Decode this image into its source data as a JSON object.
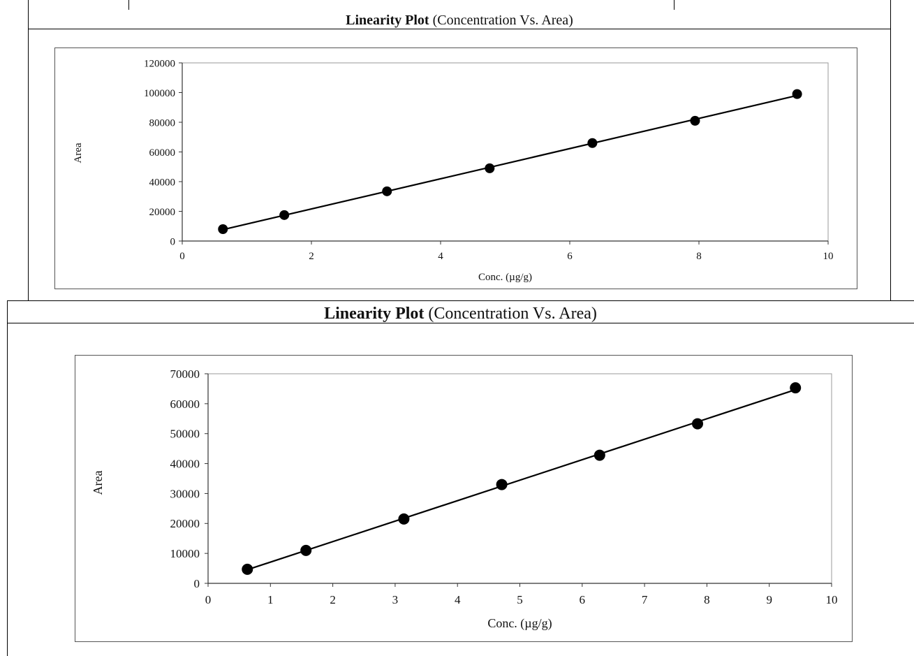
{
  "panels": [
    {
      "title_bold": "Linearity Plot",
      "title_rest": " (Concentration Vs. Area)"
    },
    {
      "title_bold": "Linearity Plot",
      "title_rest": " (Concentration Vs. Area)"
    }
  ],
  "chart_data": [
    {
      "type": "scatter",
      "title": "Linearity Plot (Concentration Vs. Area)",
      "xlabel": "Conc. (µg/g)",
      "ylabel": "Area",
      "xlim": [
        0,
        10
      ],
      "ylim": [
        0,
        120000
      ],
      "x_ticks": [
        0,
        2,
        4,
        6,
        8,
        10
      ],
      "y_ticks": [
        0,
        20000,
        40000,
        60000,
        80000,
        100000,
        120000
      ],
      "grid": false,
      "trendline": true,
      "points": [
        {
          "x": 0.63,
          "y": 8000
        },
        {
          "x": 1.58,
          "y": 17500
        },
        {
          "x": 3.17,
          "y": 33500
        },
        {
          "x": 4.76,
          "y": 49000
        },
        {
          "x": 6.35,
          "y": 66000
        },
        {
          "x": 7.94,
          "y": 81000
        },
        {
          "x": 9.52,
          "y": 99000
        }
      ]
    },
    {
      "type": "scatter",
      "title": "Linearity Plot (Concentration Vs. Area)",
      "xlabel": "Conc. (µg/g)",
      "ylabel": "Area",
      "xlim": [
        0,
        10
      ],
      "ylim": [
        0,
        70000
      ],
      "x_ticks": [
        0,
        1,
        2,
        3,
        4,
        5,
        6,
        7,
        8,
        9,
        10
      ],
      "y_ticks": [
        0,
        10000,
        20000,
        30000,
        40000,
        50000,
        60000,
        70000
      ],
      "grid": false,
      "trendline": true,
      "points": [
        {
          "x": 0.63,
          "y": 4700
        },
        {
          "x": 1.57,
          "y": 11000
        },
        {
          "x": 3.14,
          "y": 21500
        },
        {
          "x": 4.71,
          "y": 33000
        },
        {
          "x": 6.28,
          "y": 42800
        },
        {
          "x": 7.85,
          "y": 53300
        },
        {
          "x": 9.42,
          "y": 65300
        }
      ]
    }
  ]
}
